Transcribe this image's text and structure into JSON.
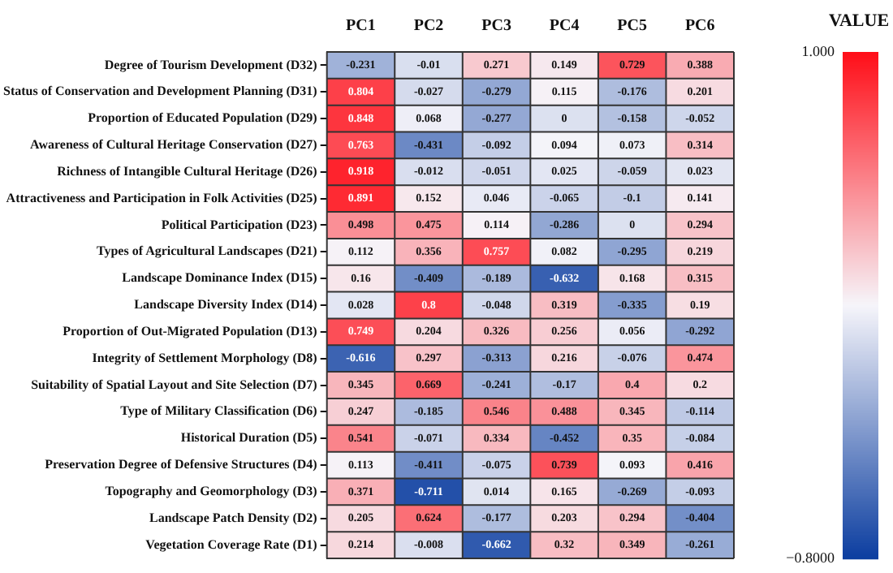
{
  "chart_data": {
    "type": "heatmap",
    "clabel": "VALUE",
    "categories": [
      "PC1",
      "PC2",
      "PC3",
      "PC4",
      "PC5",
      "PC6"
    ],
    "y_categories": [
      "Degree of Tourism Development (D32)",
      "Status of Conservation and Development Planning (D31)",
      "Proportion of Educated Population (D29)",
      "Awareness of Cultural Heritage Conservation (D27)",
      "Richness of Intangible Cultural Heritage (D26)",
      "Attractiveness and Participation in Folk Activities (D25)",
      "Political Participation (D23)",
      "Types of Agricultural Landscapes (D21)",
      "Landscape Dominance Index (D15)",
      "Landscape Diversity Index (D14)",
      "Proportion of Out-Migrated Population (D13)",
      "Integrity of Settlement Morphology (D8)",
      "Suitability of Spatial Layout and Site Selection (D7)",
      "Type of Military Classification (D6)",
      "Historical Duration (D5)",
      "Preservation Degree of Defensive Structures (D4)",
      "Topography and Geomorphology (D3)",
      "Landscape Patch Density (D2)",
      "Vegetation Coverage Rate (D1)"
    ],
    "cells": [
      [
        -0.231,
        -0.01,
        0.271,
        0.149,
        0.729,
        0.388
      ],
      [
        0.804,
        -0.027,
        -0.279,
        0.115,
        -0.176,
        0.201
      ],
      [
        0.848,
        0.068,
        -0.277,
        0,
        -0.158,
        -0.052
      ],
      [
        0.763,
        -0.431,
        -0.092,
        0.094,
        0.073,
        0.314
      ],
      [
        0.918,
        -0.012,
        -0.051,
        0.025,
        -0.059,
        0.023
      ],
      [
        0.891,
        0.152,
        0.046,
        -0.065,
        -0.1,
        0.141
      ],
      [
        0.498,
        0.475,
        0.114,
        -0.286,
        0,
        0.294
      ],
      [
        0.112,
        0.356,
        0.757,
        0.082,
        -0.295,
        0.219
      ],
      [
        0.16,
        -0.409,
        -0.189,
        -0.632,
        0.168,
        0.315
      ],
      [
        0.028,
        0.8,
        -0.048,
        0.319,
        -0.335,
        0.19
      ],
      [
        0.749,
        0.204,
        0.326,
        0.256,
        0.056,
        -0.292
      ],
      [
        -0.616,
        0.297,
        -0.313,
        0.216,
        -0.076,
        0.474
      ],
      [
        0.345,
        0.669,
        -0.241,
        -0.17,
        0.4,
        0.2
      ],
      [
        0.247,
        -0.185,
        0.546,
        0.488,
        0.345,
        -0.114
      ],
      [
        0.541,
        -0.071,
        0.334,
        -0.452,
        0.35,
        -0.084
      ],
      [
        0.113,
        -0.411,
        -0.075,
        0.739,
        0.093,
        0.416
      ],
      [
        0.371,
        -0.711,
        0.014,
        0.165,
        -0.269,
        -0.093
      ],
      [
        0.205,
        0.624,
        -0.177,
        0.203,
        0.294,
        -0.404
      ],
      [
        0.214,
        -0.008,
        -0.662,
        0.32,
        0.349,
        -0.261
      ]
    ],
    "data_labels": true,
    "clim": [
      -0.8,
      1
    ],
    "cticks": [
      {
        "value": 1,
        "label": "1.000"
      },
      {
        "value": -0.8,
        "label": "−0.8000"
      }
    ]
  }
}
